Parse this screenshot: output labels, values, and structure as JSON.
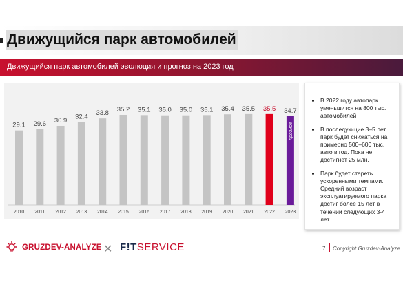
{
  "slide": {
    "title": "Движущийся парк автомобилей",
    "subtitle": "Движущийся парк автомобилей эволюция и прогноз на 2023 год"
  },
  "notes": [
    "В 2022 году автопарк уменьшится на 800 тыс. автомобилей",
    "В последующие 3–5 лет парк будет снижаться на примерно 500–600 тыс. авто в год. Пока не достигнет 25 млн.",
    "Парк будет стареть ускоренными темпами. Средний возраст эксплуатируемого парка достиг более 15 лет в течении следующих 3-4 лет."
  ],
  "footer": {
    "logo1": "GRUZDEV-ANALYZE",
    "logo2_fit": "F!T",
    "logo2_service": "SERVICE",
    "page": "7",
    "copyright": "Copyright Gruzdev-Analyze"
  },
  "colors": {
    "bar_actual": "#c4c4c4",
    "bar_2022": "#e0001b",
    "bar_forecast": "#6a1b9a",
    "label_2022": "#c8102e",
    "brand_red": "#c8102e"
  },
  "chart_data": {
    "type": "bar",
    "categories": [
      "2010",
      "2011",
      "2012",
      "2013",
      "2014",
      "2015",
      "2016",
      "2017",
      "2018",
      "2019",
      "2020",
      "2021",
      "2022",
      "2023"
    ],
    "values": [
      29.1,
      29.6,
      30.9,
      32.4,
      33.8,
      35.2,
      35.1,
      35.0,
      35.0,
      35.1,
      35.4,
      35.5,
      35.5,
      34.7
    ],
    "data_labels": [
      "29.1",
      "29.6",
      "30.9",
      "32.4",
      "33.8",
      "35.2",
      "35.1",
      "35.0",
      "35.0",
      "35.1",
      "35.4",
      "35.5",
      "35.5",
      "34.7"
    ],
    "highlight_index": 12,
    "forecast_index": 13,
    "forecast_label": "прогноз",
    "title": "",
    "xlabel": "",
    "ylabel": "",
    "ylim": [
      0,
      36
    ],
    "grid": false,
    "legend": "none"
  }
}
